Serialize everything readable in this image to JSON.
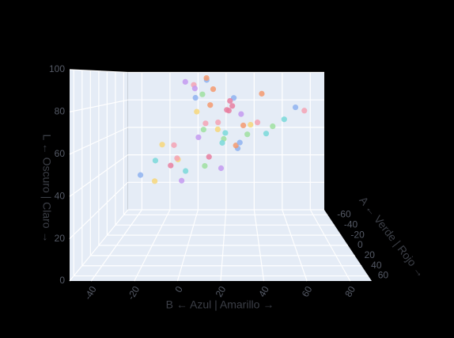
{
  "chart_data": {
    "type": "scatter3d",
    "x_title": "B ← Azul | Amarillo →",
    "y_title": "A ← Verde | Rojo →",
    "z_title": "L ← Oscuro | Claro →",
    "xlim": [
      -50,
      90
    ],
    "ylim": [
      -70,
      70
    ],
    "zlim": [
      0,
      100
    ],
    "xticks": [
      -40,
      -20,
      0,
      20,
      40,
      60,
      80
    ],
    "yticks": [
      -60,
      -40,
      -20,
      0,
      20,
      40,
      60
    ],
    "zticks": [
      0,
      20,
      40,
      60,
      80,
      100
    ],
    "marker_colors": [
      "#f4a3b4",
      "#8fb3f0",
      "#9fe0a0",
      "#f7d77a",
      "#f59a6e",
      "#c49af0",
      "#7ad9d9",
      "#e87fa0"
    ],
    "x": [
      10,
      5,
      20,
      -5,
      15,
      30,
      0,
      25,
      -10,
      12,
      8,
      35,
      40,
      18,
      -15,
      22,
      3,
      28,
      45,
      -20,
      14,
      6,
      50,
      -8,
      16,
      26,
      33,
      2,
      11,
      -3,
      19,
      24,
      60,
      55,
      9,
      -12,
      31,
      4,
      21,
      13,
      38,
      -25,
      7,
      17,
      27,
      1,
      42,
      23,
      -6,
      29
    ],
    "y": [
      0,
      10,
      -10,
      5,
      20,
      -5,
      15,
      0,
      -20,
      30,
      -15,
      10,
      40,
      -25,
      25,
      5,
      -5,
      20,
      50,
      -10,
      35,
      0,
      60,
      15,
      -30,
      45,
      25,
      -40,
      10,
      5,
      -15,
      30,
      55,
      65,
      -10,
      20,
      15,
      0,
      -5,
      25,
      35,
      10,
      -20,
      5,
      15,
      30,
      45,
      -5,
      0,
      40
    ],
    "z": [
      70,
      85,
      60,
      50,
      90,
      75,
      45,
      80,
      55,
      95,
      65,
      70,
      88,
      40,
      52,
      78,
      92,
      58,
      72,
      35,
      82,
      62,
      76,
      48,
      68,
      86,
      66,
      74,
      96,
      38,
      57,
      84,
      80,
      82,
      44,
      60,
      70,
      90,
      64,
      54,
      73,
      42,
      86,
      67,
      59,
      94,
      68,
      77,
      50,
      63
    ]
  }
}
